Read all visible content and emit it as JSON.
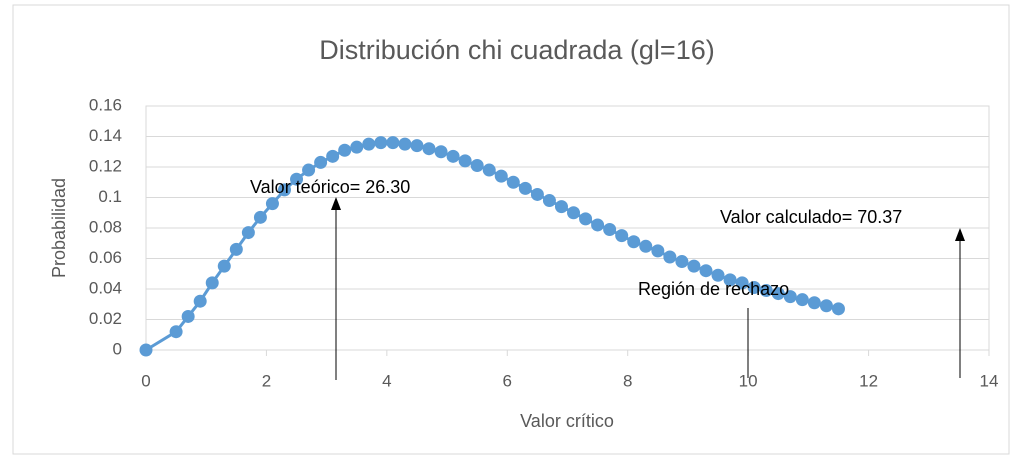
{
  "chart_data": {
    "type": "line",
    "title": "Distribución chi cuadrada (gl=16)",
    "xlabel": "Valor crítico",
    "ylabel": "Probabilidad",
    "x": [
      0,
      0.5,
      0.7,
      0.9,
      1.1,
      1.3,
      1.5,
      1.7,
      1.9,
      2.1,
      2.3,
      2.5,
      2.7,
      2.9,
      3.1,
      3.3,
      3.5,
      3.7,
      3.9,
      4.1,
      4.3,
      4.5,
      4.7,
      4.9,
      5.1,
      5.3,
      5.5,
      5.7,
      5.9,
      6.1,
      6.3,
      6.5,
      6.7,
      6.9,
      7.1,
      7.3,
      7.5,
      7.7,
      7.9,
      8.1,
      8.3,
      8.5,
      8.7,
      8.9,
      9.1,
      9.3,
      9.5,
      9.7,
      9.9,
      10.1,
      10.3,
      10.5,
      10.7,
      10.9,
      11.1,
      11.3,
      11.5
    ],
    "series": [
      {
        "color": "#5b9bd5",
        "values": [
          0,
          0.012,
          0.022,
          0.032,
          0.044,
          0.055,
          0.066,
          0.077,
          0.087,
          0.096,
          0.105,
          0.112,
          0.118,
          0.123,
          0.127,
          0.131,
          0.133,
          0.135,
          0.136,
          0.136,
          0.135,
          0.134,
          0.132,
          0.13,
          0.127,
          0.124,
          0.121,
          0.118,
          0.114,
          0.11,
          0.106,
          0.102,
          0.098,
          0.094,
          0.09,
          0.086,
          0.082,
          0.079,
          0.075,
          0.071,
          0.068,
          0.065,
          0.061,
          0.058,
          0.055,
          0.052,
          0.049,
          0.046,
          0.044,
          0.041,
          0.039,
          0.037,
          0.035,
          0.033,
          0.031,
          0.029,
          0.027
        ]
      }
    ],
    "xlim": [
      0,
      14
    ],
    "xticks": [
      0,
      2,
      4,
      6,
      8,
      10,
      12,
      14
    ],
    "ylim": [
      0,
      0.16
    ],
    "yticks": [
      0,
      0.02,
      0.04,
      0.06,
      0.08,
      0.1,
      0.12,
      0.14,
      0.16
    ],
    "grid": true,
    "annotations": [
      "Valor teórico= 26.30",
      "Valor calculado= 70.37",
      "Región de rechazo"
    ]
  }
}
